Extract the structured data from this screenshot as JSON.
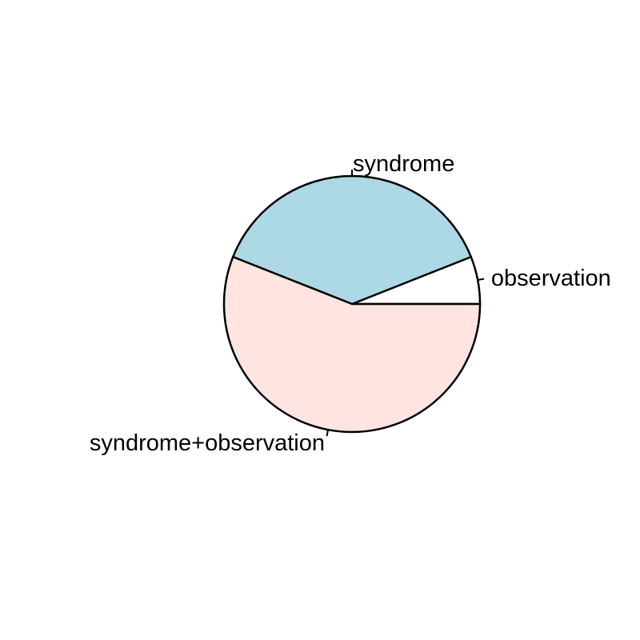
{
  "chart_data": {
    "type": "pie",
    "title": "",
    "direction": "counterclockwise",
    "start_angle_deg": 0,
    "slices": [
      {
        "label": "observation",
        "value": 0.06,
        "color": "#ffffff"
      },
      {
        "label": "syndrome",
        "value": 0.38,
        "color": "#add8e6"
      },
      {
        "label": "syndrome+observation",
        "value": 0.56,
        "color": "#ffe4e1"
      }
    ]
  }
}
